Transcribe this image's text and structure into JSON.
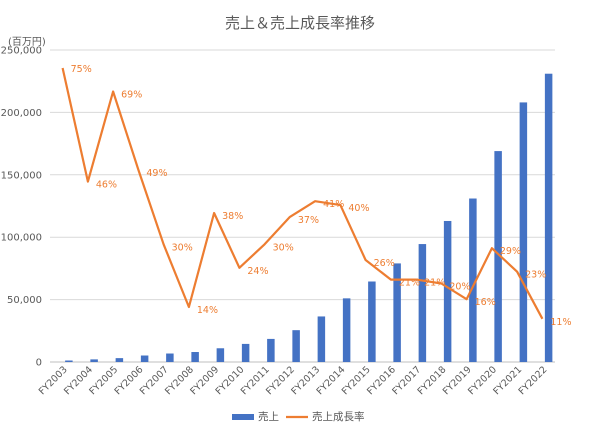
{
  "chart_data": {
    "type": "bar+line",
    "title": "売上＆売上成長率推移",
    "y_unit_label": "(百万円)",
    "categories": [
      "FY2003",
      "FY2004",
      "FY2005",
      "FY2006",
      "FY2007",
      "FY2008",
      "FY2009",
      "FY2010",
      "FY2011",
      "FY2012",
      "FY2013",
      "FY2014",
      "FY2015",
      "FY2016",
      "FY2017",
      "FY2018",
      "FY2019",
      "FY2020",
      "FY2021",
      "FY2022"
    ],
    "ylim": [
      0,
      250000
    ],
    "yticks": [
      "0",
      "50,000",
      "100,000",
      "150,000",
      "200,000",
      "250,000"
    ],
    "grid": true,
    "legend_position": "bottom",
    "series": [
      {
        "name": "売上",
        "type": "bar",
        "color": "#4472C4",
        "values": [
          1200,
          2100,
          3100,
          5200,
          6800,
          8000,
          11000,
          14500,
          18500,
          25500,
          36500,
          51000,
          64500,
          79000,
          94500,
          113000,
          131000,
          169000,
          208000,
          231000
        ]
      },
      {
        "name": "売上成長率",
        "type": "line",
        "color": "#ED7D31",
        "values": [
          75,
          46,
          69,
          49,
          30,
          14,
          38,
          24,
          30,
          37,
          41,
          40,
          26,
          21,
          21,
          20,
          16,
          29,
          23,
          11
        ],
        "labels": [
          "75%",
          "46%",
          "69%",
          "49%",
          "30%",
          "14%",
          "38%",
          "24%",
          "30%",
          "37%",
          "41%",
          "40%",
          "26%",
          "21%",
          "21%",
          "20%",
          "16%",
          "29%",
          "23%",
          "11%"
        ]
      }
    ]
  }
}
